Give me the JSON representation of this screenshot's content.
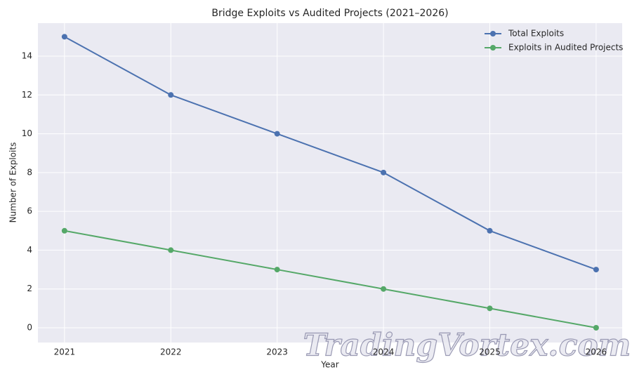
{
  "chart_data": {
    "type": "line",
    "title": "Bridge Exploits vs Audited Projects (2021–2026)",
    "xlabel": "Year",
    "ylabel": "Number of Exploits",
    "x": [
      2021,
      2022,
      2023,
      2024,
      2025,
      2026
    ],
    "series": [
      {
        "name": "Total Exploits",
        "color": "#4c72b0",
        "values": [
          15,
          12,
          10,
          8,
          5,
          3
        ]
      },
      {
        "name": "Exploits in Audited Projects",
        "color": "#55a868",
        "values": [
          5,
          4,
          3,
          2,
          1,
          0
        ]
      }
    ],
    "xlim": [
      2020.75,
      2026.245
    ],
    "xticks": [
      2021,
      2022,
      2023,
      2024,
      2025,
      2026
    ],
    "ylim": [
      -0.76,
      15.7
    ],
    "yticks": [
      0,
      2,
      4,
      6,
      8,
      10,
      12,
      14
    ],
    "grid": true,
    "legend": "upper right",
    "watermark": "TradingVortex.com"
  }
}
